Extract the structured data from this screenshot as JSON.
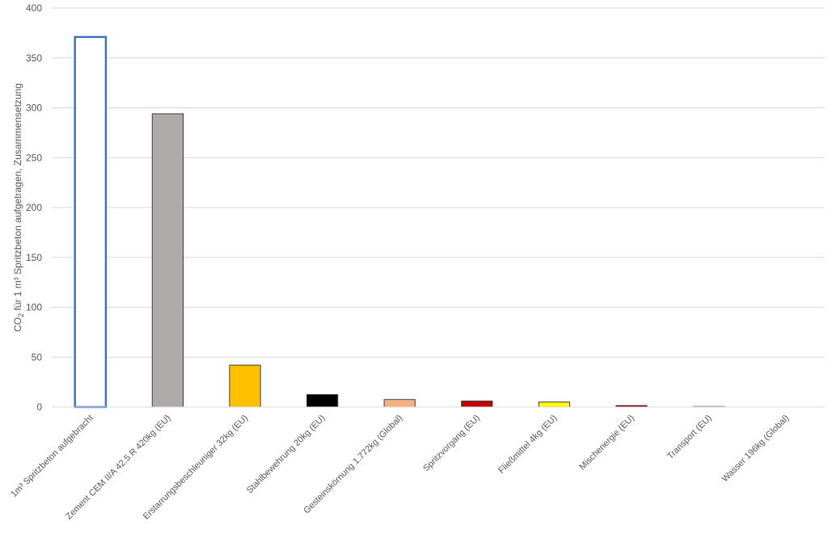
{
  "chart_data": {
    "type": "bar",
    "title": "",
    "ylabel": {
      "prefix": "CO",
      "subscript": "2",
      "suffix": " für 1 m³ Spritzbeton aufgetragen, Zusammensetzung"
    },
    "xlabel": "",
    "ylim": [
      0,
      400
    ],
    "yticks": [
      0,
      50,
      100,
      150,
      200,
      250,
      300,
      350,
      400
    ],
    "grid": true,
    "legend": "none",
    "categories": [
      "1m³ Spritzbeton aufgebracht",
      "Zement CEM II/A 42.5 R 420kg (EU)",
      "Erstarrungsbeschleuniger 32kg (EU)",
      "Stahlbewehrung 20kg (EU)",
      "Gesteinskörnung 1.772kg (Global)",
      "Spritzvorgang (EU)",
      "Fließmittel 4kg (EU)",
      "Mischenergie (EU)",
      "Transport (EU)",
      "Wasser 196kg (Global)"
    ],
    "values": [
      371,
      294,
      42,
      12.5,
      7.5,
      6,
      5,
      1.5,
      0.8,
      0
    ],
    "fills": [
      "#ffffff",
      "#aeaaaa",
      "#ffc000",
      "#000000",
      "#f4b183",
      "#c00000",
      "#ffff00",
      "#c00000",
      "#d9a35b",
      "#ffffff"
    ],
    "strokes": [
      "#4472c4",
      "#404040",
      "#404040",
      "#404040",
      "#404040",
      "#404040",
      "#404040",
      "#404040",
      "#a6a6a6",
      "#ffffff"
    ]
  }
}
